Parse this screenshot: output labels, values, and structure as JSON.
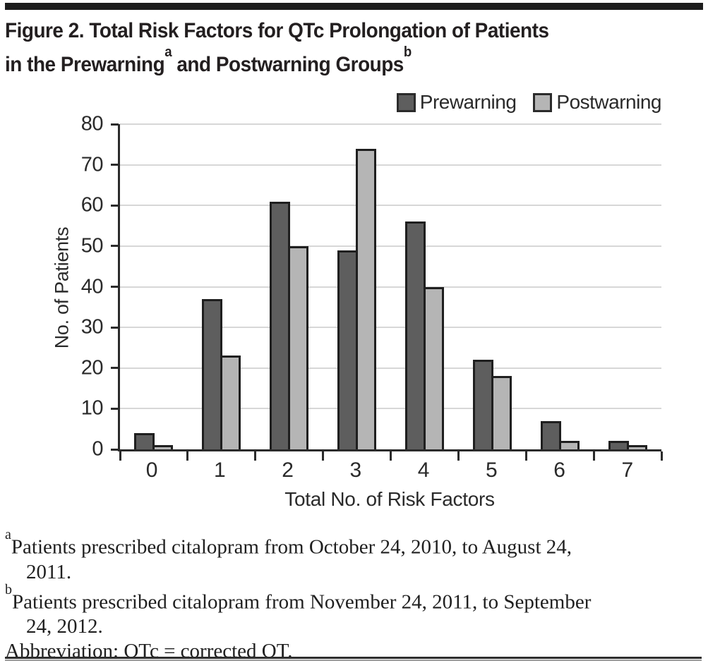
{
  "title": {
    "line1": "Figure 2. Total Risk Factors for QTc Prolongation of Patients",
    "line2_prefix": "in the Prewarning",
    "line2_sup_a": "a",
    "line2_mid": " and Postwarning Groups",
    "line2_sup_b": "b"
  },
  "chart_data": {
    "type": "bar",
    "title": "Figure 2. Total Risk Factors for QTc Prolongation of Patients in the Prewarning(a) and Postwarning Groups(b)",
    "categories": [
      "0",
      "1",
      "2",
      "3",
      "4",
      "5",
      "6",
      "7"
    ],
    "series": [
      {
        "name": "Prewarning",
        "color": "#5e5e5e",
        "values": [
          4,
          37,
          61,
          49,
          56,
          22,
          7,
          2
        ]
      },
      {
        "name": "Postwarning",
        "color": "#b5b5b5",
        "values": [
          1,
          23,
          50,
          74,
          40,
          18,
          2,
          1
        ]
      }
    ],
    "xlabel": "Total No. of Risk Factors",
    "ylabel": "No. of Patients",
    "ylim": [
      0,
      80
    ],
    "ytick_interval": 10,
    "grid": true,
    "legend_position": "top-right"
  },
  "footnotes": {
    "a_sup": "a",
    "a_line1": "Patients prescribed citalopram from October 24, 2010, to August 24,",
    "a_line2": "2011.",
    "b_sup": "b",
    "b_line1": "Patients prescribed citalopram from November 24, 2011, to September",
    "b_line2": "24, 2012.",
    "abbreviation": "Abbreviation: QTc = corrected QT."
  },
  "colors": {
    "prewarning_fill": "#5e5e5e",
    "postwarning_fill": "#b5b5b5",
    "bar_border": "#1f1f1f",
    "axis": "#2b2b2b",
    "gridline": "#d7d7d7",
    "rule": "#1d1d1d",
    "text": "#231f20"
  }
}
